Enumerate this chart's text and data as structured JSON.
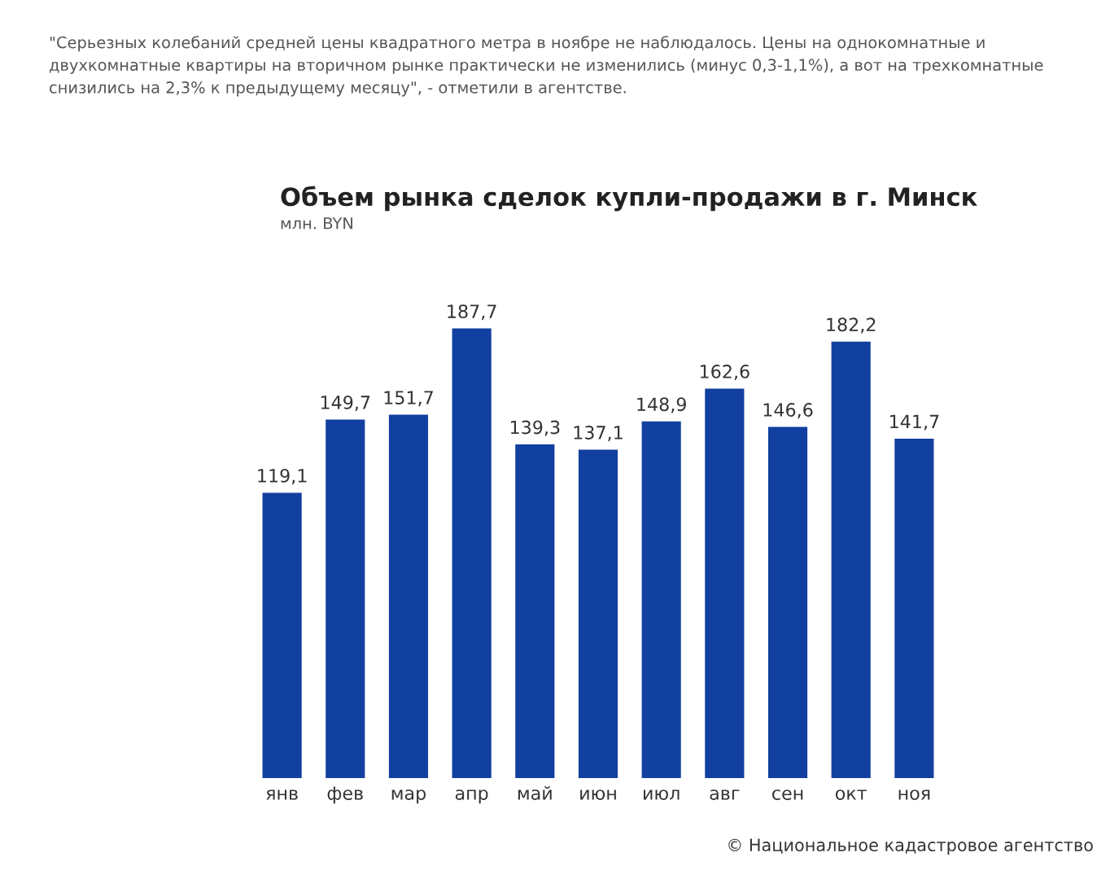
{
  "chart_data": {
    "type": "bar",
    "title": "Объем рынка сделок купли-продажи в г. Минск",
    "subtitle": "млн. BYN",
    "annotations": [
      "\"Серьезных колебаний средней цены квадратного метра в ноябре не наблюдалось. Цены на однокомнатные и двухкомнатные квартиры на вторичном рынке практически не изменились (минус 0,3-1,1%), а вот на трехкомнатные снизились на 2,3% к предыдущему месяцу\", - отметили в агентстве.",
      "© Национальное кадастровое агентство"
    ],
    "categories": [
      "янв",
      "фев",
      "мар",
      "апр",
      "май",
      "июн",
      "июл",
      "авг",
      "сен",
      "окт",
      "ноя"
    ],
    "values": [
      119.1,
      149.7,
      151.7,
      187.7,
      139.3,
      137.1,
      148.9,
      162.6,
      146.6,
      182.2,
      141.7
    ],
    "value_labels": [
      "119,1",
      "149,7",
      "151,7",
      "187,7",
      "139,3",
      "137,1",
      "148,9",
      "162,6",
      "146,6",
      "182,2",
      "141,7"
    ],
    "color": "#1240a0",
    "tick_labels": "x"
  }
}
